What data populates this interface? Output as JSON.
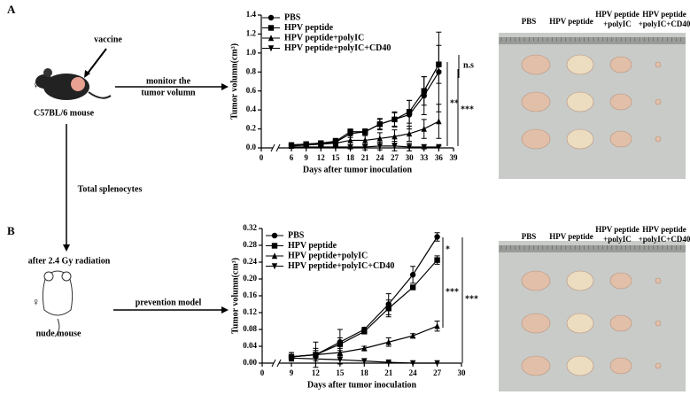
{
  "panel_labels": [
    "A",
    "B"
  ],
  "diagram": {
    "vaccine": "vaccine",
    "monitor": [
      "monitor the",
      "tumor volumn"
    ],
    "c57": "C57BL/6 mouse",
    "female_a": "♀",
    "splenocytes": "Total splenocytes",
    "radiation": "after 2.4 Gy radiation",
    "prevention": "prevention model",
    "female_b": "♀",
    "nude": "nude mouse"
  },
  "photos": [
    {
      "labels": [
        [
          "PBS"
        ],
        [
          "HPV peptide"
        ],
        [
          "HPV peptide",
          "+polyIC"
        ],
        [
          "HPV peptide",
          "+polyIC+CD40"
        ]
      ]
    },
    {
      "labels": [
        [
          "PBS"
        ],
        [
          "HPV peptide"
        ],
        [
          "HPV peptide",
          "+polyIC"
        ],
        [
          "HPV peptide",
          "+polyIC+CD40"
        ]
      ]
    }
  ],
  "chart_data": [
    {
      "type": "line",
      "y_label": "Tumor volumn(cm³)",
      "x_label": "Days after tumor inoculation",
      "xlim": [
        0,
        39
      ],
      "xticks": [
        0,
        6,
        9,
        12,
        15,
        18,
        21,
        24,
        27,
        30,
        33,
        36,
        39
      ],
      "ylim": [
        0,
        1.4
      ],
      "yticks": [
        {
          "value": 0,
          "label": "0.0"
        },
        0.2,
        0.4,
        0.6,
        0.8,
        {
          "value": 1,
          "label": "1.0"
        },
        1.2,
        1.4
      ],
      "x": [
        6,
        9,
        12,
        15,
        18,
        21,
        24,
        27,
        30,
        33,
        36
      ],
      "series": [
        {
          "name": "PBS",
          "color": "#000",
          "marker": "circle",
          "values": [
            0.03,
            0.04,
            0.05,
            0.06,
            0.15,
            0.17,
            0.25,
            0.3,
            0.35,
            0.55,
            0.8
          ],
          "errors": [
            0.02,
            0.02,
            0.02,
            0.03,
            0.04,
            0.03,
            0.06,
            0.08,
            0.15,
            0.2,
            0.42
          ]
        },
        {
          "name": "HPV peptide",
          "color": "#000",
          "marker": "square",
          "values": [
            0.03,
            0.04,
            0.05,
            0.07,
            0.17,
            0.17,
            0.25,
            0.3,
            0.38,
            0.6,
            0.88
          ],
          "errors": [
            0.02,
            0.02,
            0.02,
            0.03,
            0.03,
            0.03,
            0.05,
            0.07,
            0.12,
            0.15,
            0.2
          ]
        },
        {
          "name": "HPV peptide+polyIC",
          "color": "#000",
          "marker": "triangle-up",
          "values": [
            0.02,
            0.03,
            0.04,
            0.05,
            0.08,
            0.08,
            0.1,
            0.12,
            0.15,
            0.2,
            0.28
          ],
          "errors": [
            0.01,
            0.02,
            0.02,
            0.03,
            0.05,
            0.05,
            0.06,
            0.07,
            0.08,
            0.1,
            0.18
          ]
        },
        {
          "name": "HPV peptide+polyIC+CD40",
          "color": "#000",
          "marker": "triangle-down",
          "values": [
            0.01,
            0.01,
            0.01,
            0.01,
            0.01,
            0.01,
            0.02,
            0.02,
            0.01,
            0.01,
            0.01
          ],
          "errors": [
            0.01,
            0.01,
            0.01,
            0.01,
            0.02,
            0.03,
            0.04,
            0.05,
            0.04,
            0.02,
            0.01
          ]
        }
      ],
      "annotations": [
        "n.s",
        "**",
        "***"
      ]
    },
    {
      "type": "line",
      "y_label": "Tumor volumn(cm³)",
      "x_label": "Days after tumor inoculation",
      "xlim": [
        0,
        30
      ],
      "xticks": [
        0,
        9,
        12,
        15,
        18,
        21,
        24,
        27,
        30
      ],
      "ylim": [
        0,
        0.32
      ],
      "yticks": [
        {
          "value": 0,
          "label": "0.00"
        },
        0.04,
        0.08,
        0.12,
        0.16,
        {
          "value": 0.2,
          "label": "0.20"
        },
        0.24,
        0.28,
        0.32
      ],
      "x": [
        9,
        12,
        15,
        18,
        21,
        24,
        27
      ],
      "series": [
        {
          "name": "PBS",
          "color": "#000",
          "marker": "circle",
          "values": [
            0.015,
            0.02,
            0.05,
            0.08,
            0.14,
            0.21,
            0.3
          ],
          "errors": [
            0.01,
            0.03,
            0.03,
            0.005,
            0.025,
            0.02,
            0.01
          ]
        },
        {
          "name": "HPV peptide",
          "color": "#000",
          "marker": "square",
          "values": [
            0.015,
            0.02,
            0.045,
            0.075,
            0.13,
            0.18,
            0.245
          ],
          "errors": [
            0.01,
            0.015,
            0.015,
            0.005,
            0.02,
            0.005,
            0.01
          ]
        },
        {
          "name": "HPV peptide+polyIC",
          "color": "#000",
          "marker": "triangle-up",
          "values": [
            0.015,
            0.02,
            0.025,
            0.035,
            0.05,
            0.065,
            0.088
          ],
          "errors": [
            0.005,
            0.01,
            0.01,
            0.005,
            0.01,
            0.005,
            0.012
          ]
        },
        {
          "name": "HPV peptide+polyIC+CD40",
          "color": "#000",
          "marker": "triangle-down",
          "values": [
            0.012,
            0.01,
            0.008,
            0.005,
            0.002,
            0,
            0
          ],
          "errors": [
            0.005,
            0.01,
            0.01,
            0.005,
            0.002,
            0,
            0
          ]
        }
      ],
      "annotations": [
        "*",
        "***",
        "***"
      ]
    }
  ]
}
